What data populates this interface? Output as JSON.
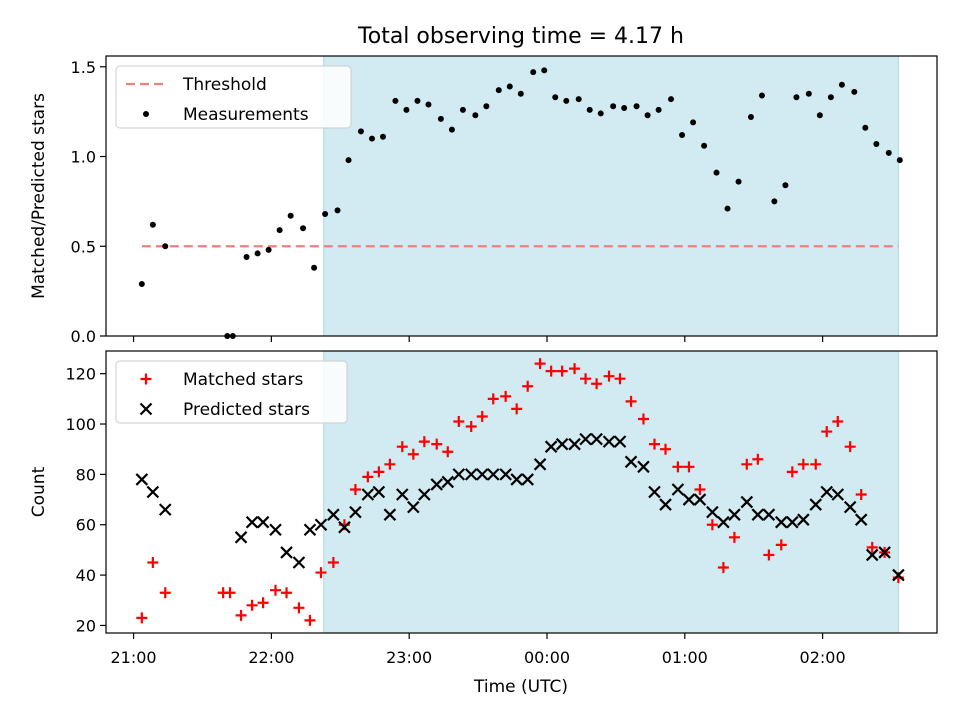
{
  "chart_data": {
    "title": "Total observing time = 4.17 h",
    "xlabel": "Time (UTC)",
    "x_tick_labels": [
      "21:00",
      "22:00",
      "23:00",
      "00:00",
      "01:00",
      "02:00"
    ],
    "x_tick_times_hours": [
      21,
      22,
      23,
      24,
      25,
      26
    ],
    "x_range_hours": [
      20.8,
      26.83
    ],
    "shaded_interval_hours": [
      22.38,
      26.55
    ],
    "shaded_color": "#add8e6",
    "panels": [
      {
        "type": "scatter",
        "ylabel": "Matched/Predicted stars",
        "ylim": [
          0,
          1.56
        ],
        "yticks": [
          0.0,
          0.5,
          1.0,
          1.5
        ],
        "ytick_labels": [
          "0.0",
          "0.5",
          "1.0",
          "1.5"
        ],
        "legend": [
          "Threshold",
          "Measurements"
        ],
        "legend_position": "top-left",
        "threshold": {
          "name": "Threshold",
          "y": 0.5,
          "x_range_hours": [
            21.06,
            26.55
          ],
          "color": "#f08080",
          "style": "dashed"
        },
        "series": [
          {
            "name": "Measurements",
            "marker": "dot",
            "color": "#000000",
            "x_hours": [
              21.06,
              21.14,
              21.23,
              21.68,
              21.72,
              21.82,
              21.9,
              21.98,
              22.06,
              22.14,
              22.23,
              22.31,
              22.39,
              22.48,
              22.56,
              22.65,
              22.73,
              22.81,
              22.9,
              22.98,
              23.06,
              23.14,
              23.23,
              23.31,
              23.39,
              23.48,
              23.56,
              23.65,
              23.73,
              23.81,
              23.9,
              23.98,
              24.06,
              24.14,
              24.23,
              24.31,
              24.39,
              24.48,
              24.56,
              24.65,
              24.73,
              24.81,
              24.9,
              24.98,
              25.06,
              25.14,
              25.23,
              25.31,
              25.39,
              25.48,
              25.56,
              25.65,
              25.73,
              25.81,
              25.9,
              25.98,
              26.06,
              26.14,
              26.23,
              26.31,
              26.39,
              26.48,
              26.56
            ],
            "y": [
              0.29,
              0.62,
              0.5,
              0.0,
              0.0,
              0.44,
              0.46,
              0.48,
              0.59,
              0.67,
              0.6,
              0.38,
              0.68,
              0.7,
              0.98,
              1.14,
              1.1,
              1.11,
              1.31,
              1.26,
              1.31,
              1.29,
              1.21,
              1.15,
              1.26,
              1.23,
              1.28,
              1.37,
              1.39,
              1.35,
              1.47,
              1.48,
              1.33,
              1.31,
              1.32,
              1.26,
              1.24,
              1.28,
              1.27,
              1.28,
              1.23,
              1.26,
              1.32,
              1.12,
              1.19,
              1.06,
              0.91,
              0.71,
              0.86,
              1.22,
              1.34,
              0.75,
              0.84,
              1.33,
              1.35,
              1.23,
              1.33,
              1.4,
              1.36,
              1.16,
              1.07,
              1.02,
              0.98
            ]
          }
        ]
      },
      {
        "type": "scatter",
        "ylabel": "Count",
        "ylim": [
          17,
          129
        ],
        "yticks": [
          20,
          40,
          60,
          80,
          100,
          120
        ],
        "ytick_labels": [
          "20",
          "40",
          "60",
          "80",
          "100",
          "120"
        ],
        "legend": [
          "Matched stars",
          "Predicted stars"
        ],
        "legend_position": "top-left",
        "series": [
          {
            "name": "Matched stars",
            "marker": "plus",
            "color": "#ff0000",
            "x_hours": [
              21.06,
              21.14,
              21.23,
              21.65,
              21.7,
              21.78,
              21.86,
              21.94,
              22.03,
              22.11,
              22.2,
              22.28,
              22.36,
              22.45,
              22.53,
              22.61,
              22.7,
              22.78,
              22.86,
              22.95,
              23.03,
              23.11,
              23.2,
              23.28,
              23.36,
              23.45,
              23.53,
              23.61,
              23.7,
              23.78,
              23.86,
              23.95,
              24.03,
              24.11,
              24.2,
              24.28,
              24.36,
              24.45,
              24.53,
              24.61,
              24.7,
              24.78,
              24.86,
              24.95,
              25.03,
              25.11,
              25.2,
              25.28,
              25.36,
              25.45,
              25.53,
              25.61,
              25.7,
              25.78,
              25.86,
              25.95,
              26.03,
              26.11,
              26.2,
              26.28,
              26.36,
              26.45,
              26.55
            ],
            "y": [
              23,
              45,
              33,
              33,
              33,
              24,
              28,
              29,
              34,
              33,
              27,
              22,
              41,
              45,
              60,
              74,
              79,
              81,
              84,
              91,
              88,
              93,
              92,
              89,
              101,
              99,
              103,
              110,
              111,
              106,
              115,
              124,
              121,
              121,
              122,
              118,
              116,
              119,
              118,
              109,
              102,
              92,
              90,
              83,
              83,
              74,
              60,
              43,
              55,
              84,
              86,
              48,
              52,
              81,
              84,
              84,
              97,
              101,
              91,
              72,
              51,
              49,
              39
            ]
          },
          {
            "name": "Predicted stars",
            "marker": "x",
            "color": "#000000",
            "x_hours": [
              21.06,
              21.14,
              21.23,
              21.78,
              21.86,
              21.94,
              22.03,
              22.11,
              22.2,
              22.28,
              22.36,
              22.45,
              22.53,
              22.61,
              22.7,
              22.78,
              22.86,
              22.95,
              23.03,
              23.11,
              23.2,
              23.28,
              23.36,
              23.45,
              23.53,
              23.61,
              23.7,
              23.78,
              23.86,
              23.95,
              24.03,
              24.11,
              24.2,
              24.28,
              24.36,
              24.45,
              24.53,
              24.61,
              24.7,
              24.78,
              24.86,
              24.95,
              25.03,
              25.11,
              25.2,
              25.28,
              25.36,
              25.45,
              25.53,
              25.61,
              25.7,
              25.78,
              25.86,
              25.95,
              26.03,
              26.11,
              26.2,
              26.28,
              26.36,
              26.45,
              26.55
            ],
            "y": [
              78,
              73,
              66,
              55,
              61,
              61,
              58,
              49,
              45,
              58,
              60,
              64,
              59,
              65,
              72,
              73,
              64,
              72,
              67,
              72,
              76,
              77,
              80,
              80,
              80,
              80,
              80,
              78,
              78,
              84,
              91,
              92,
              92,
              94,
              94,
              93,
              93,
              85,
              83,
              73,
              68,
              74,
              70,
              70,
              65,
              61,
              64,
              69,
              64,
              64,
              61,
              61,
              62,
              68,
              73,
              72,
              67,
              62,
              48,
              49,
              40
            ]
          }
        ]
      }
    ]
  }
}
